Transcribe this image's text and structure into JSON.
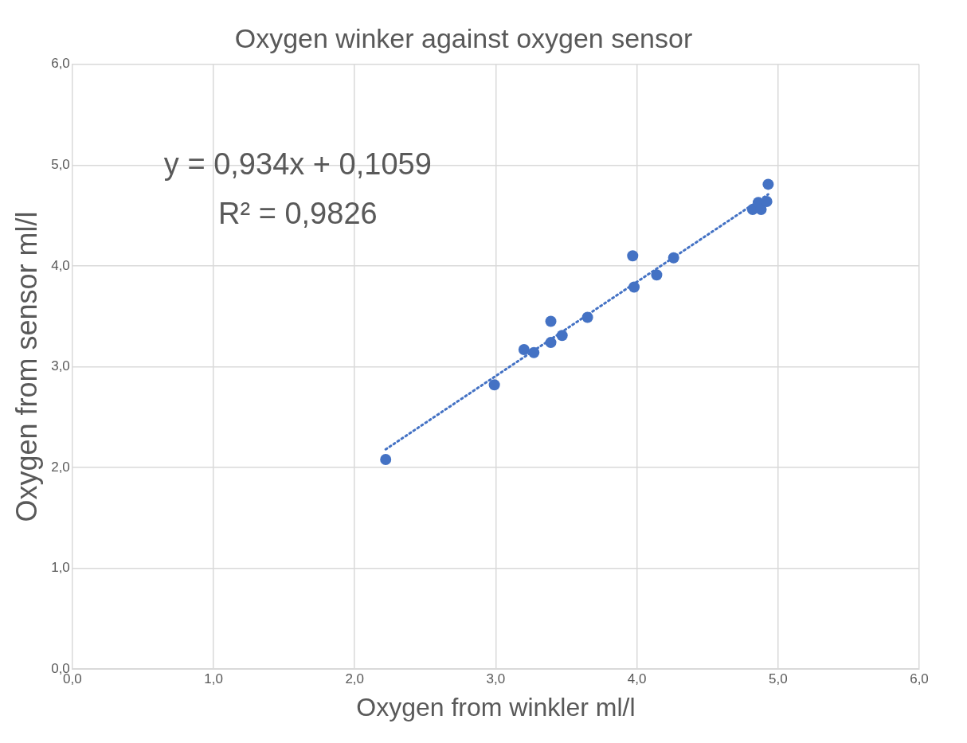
{
  "chart_data": {
    "type": "scatter",
    "title": "Oxygen winker against oxygen sensor",
    "xlabel": "Oxygen from winkler ml/l",
    "ylabel": "Oxygen from sensor ml/l",
    "xlim": [
      0,
      6
    ],
    "ylim": [
      0,
      6
    ],
    "xticks": [
      {
        "value": 0,
        "label": "0,0"
      },
      {
        "value": 1,
        "label": "1,0"
      },
      {
        "value": 2,
        "label": "2,0"
      },
      {
        "value": 3,
        "label": "3,0"
      },
      {
        "value": 4,
        "label": "4,0"
      },
      {
        "value": 5,
        "label": "5,0"
      },
      {
        "value": 6,
        "label": "6,0"
      }
    ],
    "yticks": [
      {
        "value": 0,
        "label": "0,0"
      },
      {
        "value": 1,
        "label": "1,0"
      },
      {
        "value": 2,
        "label": "2,0"
      },
      {
        "value": 3,
        "label": "3,0"
      },
      {
        "value": 4,
        "label": "4,0"
      },
      {
        "value": 5,
        "label": "5,0"
      },
      {
        "value": 6,
        "label": "6,0"
      }
    ],
    "grid": true,
    "legend": false,
    "marker": "circle",
    "annotations": [
      "y = 0,934x + 0,1059",
      "R² = 0,9826"
    ],
    "series": [
      {
        "color": "#4472c4",
        "x": [
          2.22,
          2.99,
          3.2,
          3.27,
          3.39,
          3.39,
          3.47,
          3.65,
          3.97,
          3.98,
          4.14,
          4.26,
          4.82,
          4.86,
          4.88,
          4.92,
          4.93
        ],
        "values": [
          2.08,
          2.82,
          3.17,
          3.14,
          3.24,
          3.45,
          3.31,
          3.49,
          4.1,
          3.79,
          3.91,
          4.08,
          4.56,
          4.63,
          4.56,
          4.64,
          4.81
        ]
      },
      {
        "type": "line",
        "color": "#4472c4",
        "line_style": "dotted",
        "marker": "none",
        "x": [
          2.22,
          4.93
        ],
        "values": [
          2.18,
          4.71
        ]
      }
    ]
  }
}
